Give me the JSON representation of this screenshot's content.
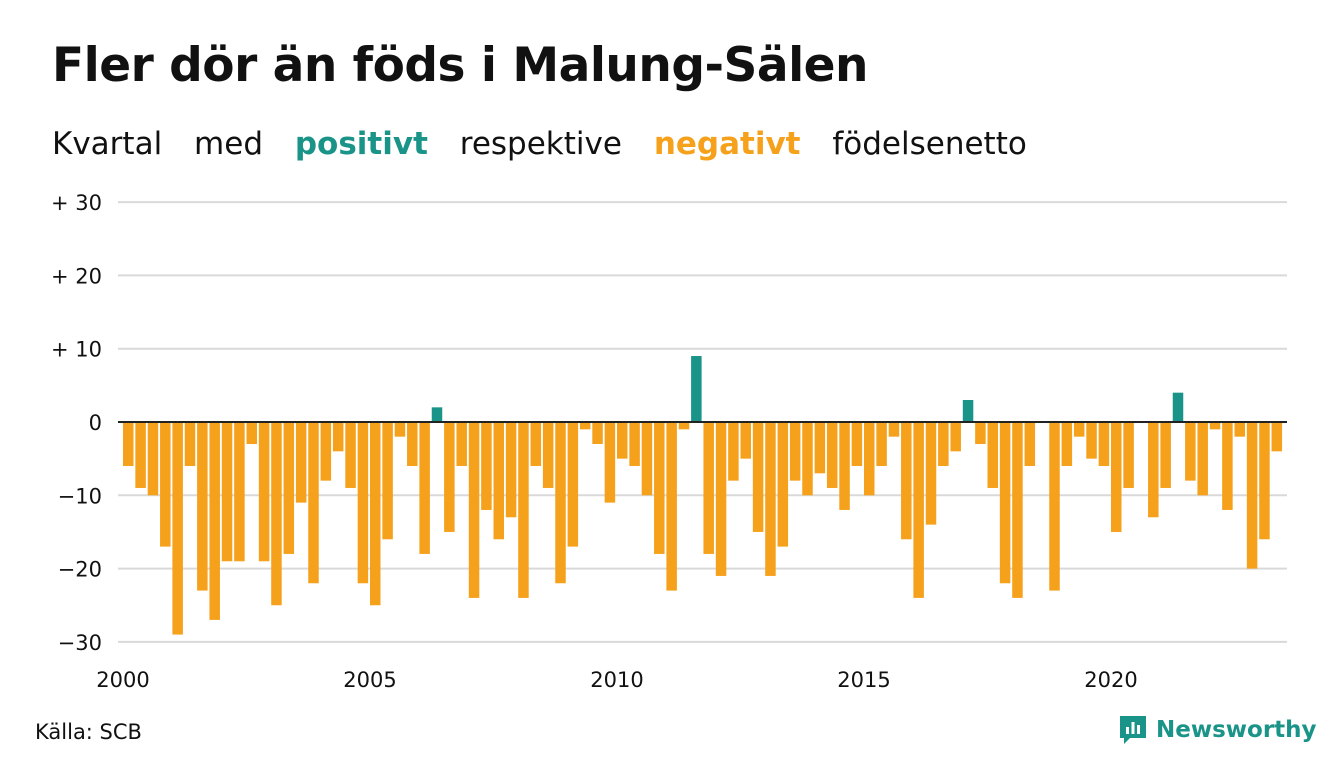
{
  "title": "Fler dör än föds i Malung-Sälen",
  "subtitle": {
    "w1": "Kvartal",
    "w2": "med",
    "positive": "positivt",
    "w3": "respektive",
    "negative": "negativt",
    "w4": "födelsenetto"
  },
  "source": "Källa: SCB",
  "brand": "Newsworthy",
  "colors": {
    "positive": "#1a9488",
    "negative": "#f5a11c",
    "grid": "#d9d9d9",
    "zero": "#222222"
  },
  "chart_data": {
    "type": "bar",
    "xlabel": "",
    "ylabel": "",
    "ylim": [
      -30,
      30
    ],
    "yticks": [
      30,
      20,
      10,
      0,
      -10,
      -20,
      -30
    ],
    "ytick_labels": [
      "+ 30",
      "+ 20",
      "+ 10",
      "0",
      "−10",
      "−20",
      "−30"
    ],
    "xticks": [
      2000,
      2005,
      2010,
      2015,
      2020
    ],
    "xtick_labels": [
      "2000",
      "2005",
      "2010",
      "2015",
      "2020"
    ],
    "x_start": 2000,
    "periods_per_year": 4,
    "grid": true,
    "values": [
      -6,
      -9,
      -10,
      -17,
      -29,
      -6,
      -23,
      -27,
      -19,
      -19,
      -3,
      -19,
      -25,
      -18,
      -11,
      -22,
      -8,
      -4,
      -9,
      -22,
      -25,
      -16,
      -2,
      -6,
      -18,
      2,
      -15,
      -6,
      -24,
      -12,
      -16,
      -13,
      -24,
      -6,
      -9,
      -22,
      -17,
      -1,
      -3,
      -11,
      -5,
      -6,
      -10,
      -18,
      -23,
      -1,
      9,
      -18,
      -21,
      -8,
      -5,
      -15,
      -21,
      -17,
      -8,
      -10,
      -7,
      -9,
      -12,
      -6,
      -10,
      -6,
      -2,
      -16,
      -24,
      -14,
      -6,
      -4,
      3,
      -3,
      -9,
      -22,
      -24,
      -6,
      0,
      -23,
      -6,
      -2,
      -5,
      -6,
      -15,
      -9,
      0,
      -13,
      -9,
      4,
      -8,
      -10,
      -1,
      -12,
      -2,
      -20,
      -16,
      -4
    ]
  }
}
